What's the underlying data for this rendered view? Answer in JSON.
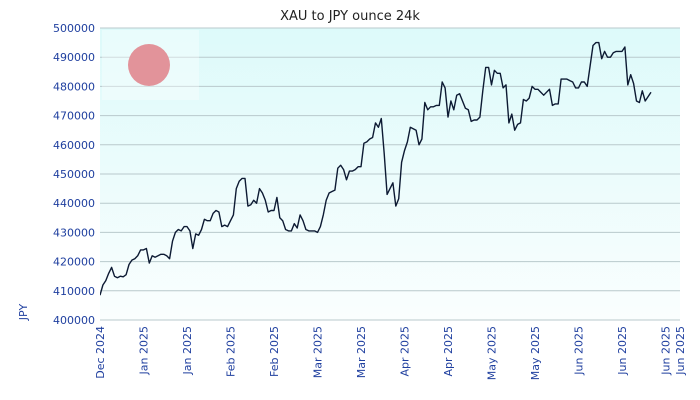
{
  "chart_data": {
    "type": "line",
    "title": "XAU to JPY ounce 24k",
    "xlabel": "",
    "ylabel": "JPY",
    "ylim": [
      400000,
      500000
    ],
    "yticks": [
      400000,
      410000,
      420000,
      430000,
      440000,
      450000,
      460000,
      470000,
      480000,
      490000,
      500000
    ],
    "ytick_labels": [
      "400000",
      "410000",
      "420000",
      "430000",
      "440000",
      "450000",
      "460000",
      "470000",
      "480000",
      "490000",
      "500000"
    ],
    "xlim": [
      0,
      200
    ],
    "xticks": [
      0,
      15,
      30,
      45,
      60,
      75,
      90,
      105,
      120,
      135,
      150,
      165,
      180,
      195,
      200
    ],
    "xtick_labels": [
      "Dec 2024",
      "Jan 2025",
      "Jan 2025",
      "Feb 2025",
      "Feb 2025",
      "Mar 2025",
      "Mar 2025",
      "Apr 2025",
      "Apr 2025",
      "May 2025",
      "May 2025",
      "Jun 2025",
      "Jun 2025",
      "Jun 2025",
      "Jun 2025"
    ],
    "grid": true,
    "legend": "top-left",
    "colors": {
      "line": "#0d1a33",
      "grid": "#b9c9cc",
      "plot_bg_top": "#ddfafa",
      "plot_bg_bottom": "#fafefe",
      "flag_circle": "#e2939a",
      "tick_text": "#1f3f9f"
    },
    "series": [
      {
        "values": [
          [
            0,
            408500
          ],
          [
            1,
            412000
          ],
          [
            2,
            413500
          ],
          [
            3,
            416000
          ],
          [
            4,
            418000
          ],
          [
            5,
            415000
          ],
          [
            6,
            414500
          ],
          [
            7,
            415000
          ],
          [
            8,
            414800
          ],
          [
            9,
            415500
          ],
          [
            10,
            419000
          ],
          [
            11,
            420500
          ],
          [
            12,
            421000
          ],
          [
            13,
            422000
          ],
          [
            14,
            424000
          ],
          [
            15,
            424000
          ],
          [
            16,
            424500
          ],
          [
            17,
            419500
          ],
          [
            18,
            422000
          ],
          [
            19,
            421500
          ],
          [
            20,
            422000
          ],
          [
            21,
            422500
          ],
          [
            22,
            422500
          ],
          [
            23,
            422000
          ],
          [
            24,
            421000
          ],
          [
            25,
            427000
          ],
          [
            26,
            430000
          ],
          [
            27,
            431000
          ],
          [
            28,
            430500
          ],
          [
            29,
            432000
          ],
          [
            30,
            432000
          ],
          [
            31,
            430500
          ],
          [
            32,
            424500
          ],
          [
            33,
            429500
          ],
          [
            34,
            429000
          ],
          [
            35,
            431000
          ],
          [
            36,
            434500
          ],
          [
            37,
            434000
          ],
          [
            38,
            434000
          ],
          [
            39,
            436500
          ],
          [
            40,
            437500
          ],
          [
            41,
            437000
          ],
          [
            42,
            432000
          ],
          [
            43,
            432500
          ],
          [
            44,
            432000
          ],
          [
            45,
            434000
          ],
          [
            46,
            436000
          ],
          [
            47,
            445000
          ],
          [
            48,
            447500
          ],
          [
            49,
            448500
          ],
          [
            50,
            448500
          ],
          [
            51,
            439000
          ],
          [
            52,
            439500
          ],
          [
            53,
            441000
          ],
          [
            54,
            440000
          ],
          [
            55,
            445000
          ],
          [
            56,
            443500
          ],
          [
            57,
            441000
          ],
          [
            58,
            437000
          ],
          [
            59,
            437500
          ],
          [
            60,
            437500
          ],
          [
            61,
            442000
          ],
          [
            62,
            435000
          ],
          [
            63,
            434000
          ],
          [
            64,
            431000
          ],
          [
            65,
            430500
          ],
          [
            66,
            430500
          ],
          [
            67,
            433000
          ],
          [
            68,
            431500
          ],
          [
            69,
            436000
          ],
          [
            70,
            434000
          ],
          [
            71,
            431000
          ],
          [
            72,
            430500
          ],
          [
            73,
            430500
          ],
          [
            74,
            430500
          ],
          [
            75,
            430000
          ],
          [
            76,
            432000
          ],
          [
            77,
            436000
          ],
          [
            78,
            441000
          ],
          [
            79,
            443500
          ],
          [
            80,
            444000
          ],
          [
            81,
            444500
          ],
          [
            82,
            452000
          ],
          [
            83,
            453000
          ],
          [
            84,
            451500
          ],
          [
            85,
            448000
          ],
          [
            86,
            451000
          ],
          [
            87,
            451000
          ],
          [
            88,
            451500
          ],
          [
            89,
            452500
          ],
          [
            90,
            452500
          ],
          [
            91,
            460500
          ],
          [
            92,
            461000
          ],
          [
            93,
            462000
          ],
          [
            94,
            462500
          ],
          [
            95,
            467500
          ],
          [
            96,
            466000
          ],
          [
            97,
            469000
          ],
          [
            98,
            457000
          ],
          [
            99,
            443000
          ],
          [
            100,
            445000
          ],
          [
            101,
            447000
          ],
          [
            102,
            439000
          ],
          [
            103,
            441500
          ],
          [
            104,
            454000
          ],
          [
            105,
            458000
          ],
          [
            106,
            461000
          ],
          [
            107,
            466000
          ],
          [
            108,
            465500
          ],
          [
            109,
            465000
          ],
          [
            110,
            460000
          ],
          [
            111,
            462000
          ],
          [
            112,
            474500
          ],
          [
            113,
            472000
          ],
          [
            114,
            473000
          ],
          [
            115,
            473000
          ],
          [
            116,
            473500
          ],
          [
            117,
            473500
          ],
          [
            118,
            481500
          ],
          [
            119,
            479500
          ],
          [
            120,
            469500
          ],
          [
            121,
            475000
          ],
          [
            122,
            472000
          ],
          [
            123,
            477000
          ],
          [
            124,
            477500
          ],
          [
            125,
            475000
          ],
          [
            126,
            472500
          ],
          [
            127,
            472000
          ],
          [
            128,
            468000
          ],
          [
            129,
            468500
          ],
          [
            130,
            468500
          ],
          [
            131,
            469500
          ],
          [
            132,
            478500
          ],
          [
            133,
            486500
          ],
          [
            134,
            486500
          ],
          [
            135,
            480500
          ],
          [
            136,
            485500
          ],
          [
            137,
            484500
          ],
          [
            138,
            484500
          ],
          [
            139,
            479500
          ],
          [
            140,
            480500
          ],
          [
            141,
            467500
          ],
          [
            142,
            470500
          ],
          [
            143,
            465000
          ],
          [
            144,
            467000
          ],
          [
            145,
            467500
          ],
          [
            146,
            475500
          ],
          [
            147,
            475000
          ],
          [
            148,
            476000
          ],
          [
            149,
            480000
          ],
          [
            150,
            479000
          ],
          [
            151,
            479000
          ],
          [
            152,
            478000
          ],
          [
            153,
            477000
          ],
          [
            154,
            478000
          ],
          [
            155,
            479000
          ],
          [
            156,
            473500
          ],
          [
            157,
            474000
          ],
          [
            158,
            474000
          ],
          [
            159,
            482500
          ],
          [
            160,
            482500
          ],
          [
            161,
            482500
          ],
          [
            162,
            482000
          ],
          [
            163,
            481500
          ],
          [
            164,
            479500
          ],
          [
            165,
            479500
          ],
          [
            166,
            481500
          ],
          [
            167,
            481500
          ],
          [
            168,
            480000
          ],
          [
            169,
            487000
          ],
          [
            170,
            494000
          ],
          [
            171,
            495000
          ],
          [
            172,
            495000
          ],
          [
            173,
            489500
          ],
          [
            174,
            492000
          ],
          [
            175,
            490000
          ],
          [
            176,
            490000
          ],
          [
            177,
            491500
          ],
          [
            178,
            492000
          ],
          [
            179,
            492000
          ],
          [
            180,
            492000
          ],
          [
            181,
            493500
          ],
          [
            182,
            480500
          ],
          [
            183,
            484000
          ],
          [
            184,
            481000
          ],
          [
            185,
            475000
          ],
          [
            186,
            474500
          ],
          [
            187,
            478500
          ],
          [
            188,
            475000
          ],
          [
            189,
            476500
          ],
          [
            190,
            478000
          ]
        ]
      }
    ]
  }
}
